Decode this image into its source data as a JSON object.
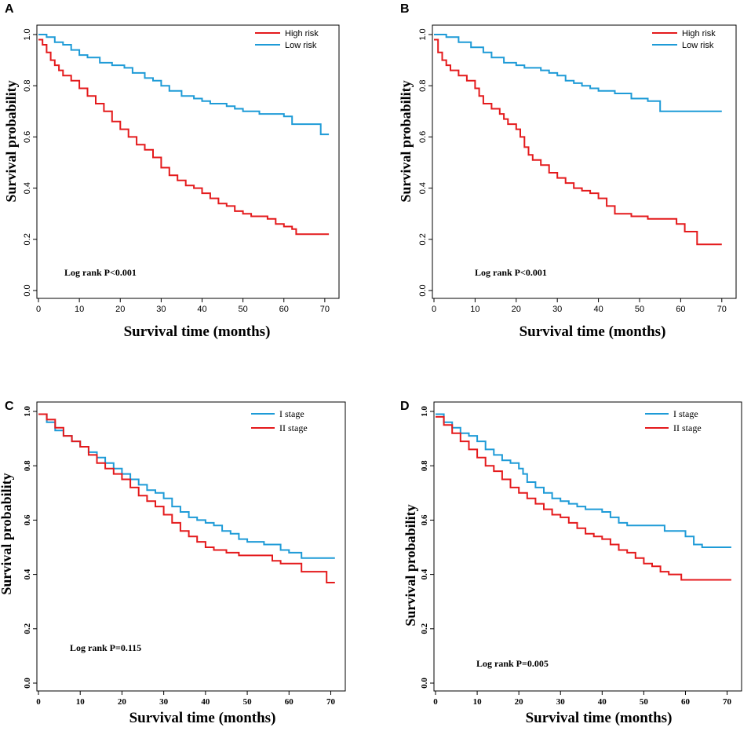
{
  "chart_data": [
    {
      "panel": "A",
      "type": "line",
      "step": true,
      "xlabel": "Survival time (months)",
      "ylabel": "Survival probability",
      "xlim": [
        0,
        72
      ],
      "ylim": [
        0,
        1
      ],
      "xticks": [
        "0",
        "10",
        "20",
        "30",
        "40",
        "50",
        "60",
        "70"
      ],
      "yticks": [
        "0.0",
        "0.2",
        "0.4",
        "0.6",
        "0.8",
        "1.0"
      ],
      "legend_position": "top-right",
      "annotation": "Log rank P<0.001",
      "series": [
        {
          "name": "High risk",
          "color": "#e41a1c",
          "points": [
            [
              0,
              0.98
            ],
            [
              1,
              0.96
            ],
            [
              2,
              0.93
            ],
            [
              3,
              0.9
            ],
            [
              4,
              0.88
            ],
            [
              5,
              0.86
            ],
            [
              6,
              0.84
            ],
            [
              8,
              0.82
            ],
            [
              10,
              0.79
            ],
            [
              12,
              0.76
            ],
            [
              14,
              0.73
            ],
            [
              16,
              0.7
            ],
            [
              18,
              0.66
            ],
            [
              20,
              0.63
            ],
            [
              22,
              0.6
            ],
            [
              24,
              0.57
            ],
            [
              26,
              0.55
            ],
            [
              28,
              0.52
            ],
            [
              30,
              0.48
            ],
            [
              32,
              0.45
            ],
            [
              34,
              0.43
            ],
            [
              36,
              0.41
            ],
            [
              38,
              0.4
            ],
            [
              40,
              0.38
            ],
            [
              42,
              0.36
            ],
            [
              44,
              0.34
            ],
            [
              46,
              0.33
            ],
            [
              48,
              0.31
            ],
            [
              50,
              0.3
            ],
            [
              52,
              0.29
            ],
            [
              56,
              0.28
            ],
            [
              58,
              0.26
            ],
            [
              60,
              0.25
            ],
            [
              62,
              0.24
            ],
            [
              63,
              0.22
            ],
            [
              71,
              0.22
            ]
          ]
        },
        {
          "name": "Low risk",
          "color": "#1e9bd7",
          "points": [
            [
              0,
              1.0
            ],
            [
              2,
              0.99
            ],
            [
              4,
              0.97
            ],
            [
              6,
              0.96
            ],
            [
              8,
              0.94
            ],
            [
              10,
              0.92
            ],
            [
              12,
              0.91
            ],
            [
              15,
              0.89
            ],
            [
              18,
              0.88
            ],
            [
              21,
              0.87
            ],
            [
              23,
              0.85
            ],
            [
              26,
              0.83
            ],
            [
              28,
              0.82
            ],
            [
              30,
              0.8
            ],
            [
              32,
              0.78
            ],
            [
              35,
              0.76
            ],
            [
              38,
              0.75
            ],
            [
              40,
              0.74
            ],
            [
              42,
              0.73
            ],
            [
              46,
              0.72
            ],
            [
              48,
              0.71
            ],
            [
              50,
              0.7
            ],
            [
              54,
              0.69
            ],
            [
              60,
              0.68
            ],
            [
              62,
              0.65
            ],
            [
              69,
              0.61
            ],
            [
              71,
              0.61
            ]
          ]
        }
      ]
    },
    {
      "panel": "B",
      "type": "line",
      "step": true,
      "xlabel": "Survival time  (months)",
      "ylabel": "Survival probability",
      "xlim": [
        0,
        72
      ],
      "ylim": [
        0,
        1
      ],
      "xticks": [
        "0",
        "10",
        "20",
        "30",
        "40",
        "50",
        "60",
        "70"
      ],
      "yticks": [
        "0.0",
        "0.2",
        "0.4",
        "0.6",
        "0.8",
        "1.0"
      ],
      "legend_position": "top-right",
      "annotation": "Log rank P<0.001",
      "series": [
        {
          "name": "High risk",
          "color": "#e41a1c",
          "points": [
            [
              0,
              0.98
            ],
            [
              1,
              0.93
            ],
            [
              2,
              0.9
            ],
            [
              3,
              0.88
            ],
            [
              4,
              0.86
            ],
            [
              6,
              0.84
            ],
            [
              8,
              0.82
            ],
            [
              10,
              0.79
            ],
            [
              11,
              0.76
            ],
            [
              12,
              0.73
            ],
            [
              14,
              0.71
            ],
            [
              16,
              0.69
            ],
            [
              17,
              0.67
            ],
            [
              18,
              0.65
            ],
            [
              20,
              0.63
            ],
            [
              21,
              0.6
            ],
            [
              22,
              0.56
            ],
            [
              23,
              0.53
            ],
            [
              24,
              0.51
            ],
            [
              26,
              0.49
            ],
            [
              28,
              0.46
            ],
            [
              30,
              0.44
            ],
            [
              32,
              0.42
            ],
            [
              34,
              0.4
            ],
            [
              36,
              0.39
            ],
            [
              38,
              0.38
            ],
            [
              40,
              0.36
            ],
            [
              42,
              0.33
            ],
            [
              44,
              0.3
            ],
            [
              48,
              0.29
            ],
            [
              52,
              0.28
            ],
            [
              59,
              0.26
            ],
            [
              61,
              0.23
            ],
            [
              64,
              0.18
            ],
            [
              70,
              0.18
            ]
          ]
        },
        {
          "name": "Low risk",
          "color": "#1e9bd7",
          "points": [
            [
              0,
              1.0
            ],
            [
              3,
              0.99
            ],
            [
              6,
              0.97
            ],
            [
              9,
              0.95
            ],
            [
              12,
              0.93
            ],
            [
              14,
              0.91
            ],
            [
              17,
              0.89
            ],
            [
              20,
              0.88
            ],
            [
              22,
              0.87
            ],
            [
              26,
              0.86
            ],
            [
              28,
              0.85
            ],
            [
              30,
              0.84
            ],
            [
              32,
              0.82
            ],
            [
              34,
              0.81
            ],
            [
              36,
              0.8
            ],
            [
              38,
              0.79
            ],
            [
              40,
              0.78
            ],
            [
              44,
              0.77
            ],
            [
              48,
              0.75
            ],
            [
              52,
              0.74
            ],
            [
              55,
              0.7
            ],
            [
              70,
              0.7
            ]
          ]
        }
      ]
    },
    {
      "panel": "C",
      "type": "line",
      "step": true,
      "xlabel": "Survival time (months)",
      "ylabel": "Survival probability",
      "xlim": [
        0,
        72
      ],
      "ylim": [
        0,
        1
      ],
      "xticks": [
        "0",
        "10",
        "20",
        "30",
        "40",
        "50",
        "60",
        "70"
      ],
      "yticks": [
        "0.0",
        "0.2",
        "0.4",
        "0.6",
        "0.8",
        "1.0"
      ],
      "legend_position": "top-right",
      "annotation": "Log rank P=0.115",
      "series": [
        {
          "name": "I stage",
          "color": "#1e9bd7",
          "points": [
            [
              0,
              0.99
            ],
            [
              2,
              0.96
            ],
            [
              4,
              0.93
            ],
            [
              6,
              0.91
            ],
            [
              8,
              0.89
            ],
            [
              10,
              0.87
            ],
            [
              12,
              0.85
            ],
            [
              14,
              0.83
            ],
            [
              16,
              0.81
            ],
            [
              18,
              0.79
            ],
            [
              20,
              0.77
            ],
            [
              22,
              0.75
            ],
            [
              24,
              0.73
            ],
            [
              26,
              0.71
            ],
            [
              28,
              0.7
            ],
            [
              30,
              0.68
            ],
            [
              32,
              0.65
            ],
            [
              34,
              0.63
            ],
            [
              36,
              0.61
            ],
            [
              38,
              0.6
            ],
            [
              40,
              0.59
            ],
            [
              42,
              0.58
            ],
            [
              44,
              0.56
            ],
            [
              46,
              0.55
            ],
            [
              48,
              0.53
            ],
            [
              50,
              0.52
            ],
            [
              54,
              0.51
            ],
            [
              58,
              0.49
            ],
            [
              60,
              0.48
            ],
            [
              63,
              0.46
            ],
            [
              71,
              0.46
            ]
          ]
        },
        {
          "name": "II stage",
          "color": "#e41a1c",
          "points": [
            [
              0,
              0.99
            ],
            [
              2,
              0.97
            ],
            [
              4,
              0.94
            ],
            [
              6,
              0.91
            ],
            [
              8,
              0.89
            ],
            [
              10,
              0.87
            ],
            [
              12,
              0.84
            ],
            [
              14,
              0.81
            ],
            [
              16,
              0.79
            ],
            [
              18,
              0.77
            ],
            [
              20,
              0.75
            ],
            [
              22,
              0.72
            ],
            [
              24,
              0.69
            ],
            [
              26,
              0.67
            ],
            [
              28,
              0.65
            ],
            [
              30,
              0.62
            ],
            [
              32,
              0.59
            ],
            [
              34,
              0.56
            ],
            [
              36,
              0.54
            ],
            [
              38,
              0.52
            ],
            [
              40,
              0.5
            ],
            [
              42,
              0.49
            ],
            [
              45,
              0.48
            ],
            [
              48,
              0.47
            ],
            [
              56,
              0.45
            ],
            [
              58,
              0.44
            ],
            [
              63,
              0.41
            ],
            [
              69,
              0.37
            ],
            [
              71,
              0.37
            ]
          ]
        }
      ]
    },
    {
      "panel": "D",
      "type": "line",
      "step": true,
      "xlabel": "Survival time (months)",
      "ylabel": "Survival probability",
      "xlim": [
        0,
        72
      ],
      "ylim": [
        0,
        1
      ],
      "xticks": [
        "0",
        "10",
        "20",
        "30",
        "40",
        "50",
        "60",
        "70"
      ],
      "yticks": [
        "0.0",
        "0.2",
        "0.4",
        "0.6",
        "0.8",
        "1.0"
      ],
      "legend_position": "top-right",
      "annotation": "Log rank P=0.005",
      "series": [
        {
          "name": "I stage",
          "color": "#1e9bd7",
          "points": [
            [
              0,
              0.99
            ],
            [
              2,
              0.96
            ],
            [
              4,
              0.94
            ],
            [
              6,
              0.92
            ],
            [
              8,
              0.91
            ],
            [
              10,
              0.89
            ],
            [
              12,
              0.86
            ],
            [
              14,
              0.84
            ],
            [
              16,
              0.82
            ],
            [
              18,
              0.81
            ],
            [
              20,
              0.79
            ],
            [
              21,
              0.77
            ],
            [
              22,
              0.74
            ],
            [
              24,
              0.72
            ],
            [
              26,
              0.7
            ],
            [
              28,
              0.68
            ],
            [
              30,
              0.67
            ],
            [
              32,
              0.66
            ],
            [
              34,
              0.65
            ],
            [
              36,
              0.64
            ],
            [
              40,
              0.63
            ],
            [
              42,
              0.61
            ],
            [
              44,
              0.59
            ],
            [
              46,
              0.58
            ],
            [
              55,
              0.56
            ],
            [
              60,
              0.54
            ],
            [
              62,
              0.51
            ],
            [
              64,
              0.5
            ],
            [
              71,
              0.5
            ]
          ]
        },
        {
          "name": "II stage",
          "color": "#e41a1c",
          "points": [
            [
              0,
              0.98
            ],
            [
              2,
              0.95
            ],
            [
              4,
              0.92
            ],
            [
              6,
              0.89
            ],
            [
              8,
              0.86
            ],
            [
              10,
              0.83
            ],
            [
              12,
              0.8
            ],
            [
              14,
              0.78
            ],
            [
              16,
              0.75
            ],
            [
              18,
              0.72
            ],
            [
              20,
              0.7
            ],
            [
              22,
              0.68
            ],
            [
              24,
              0.66
            ],
            [
              26,
              0.64
            ],
            [
              28,
              0.62
            ],
            [
              30,
              0.61
            ],
            [
              32,
              0.59
            ],
            [
              34,
              0.57
            ],
            [
              36,
              0.55
            ],
            [
              38,
              0.54
            ],
            [
              40,
              0.53
            ],
            [
              42,
              0.51
            ],
            [
              44,
              0.49
            ],
            [
              46,
              0.48
            ],
            [
              48,
              0.46
            ],
            [
              50,
              0.44
            ],
            [
              52,
              0.43
            ],
            [
              54,
              0.41
            ],
            [
              56,
              0.4
            ],
            [
              59,
              0.38
            ],
            [
              71,
              0.38
            ]
          ]
        }
      ]
    }
  ]
}
